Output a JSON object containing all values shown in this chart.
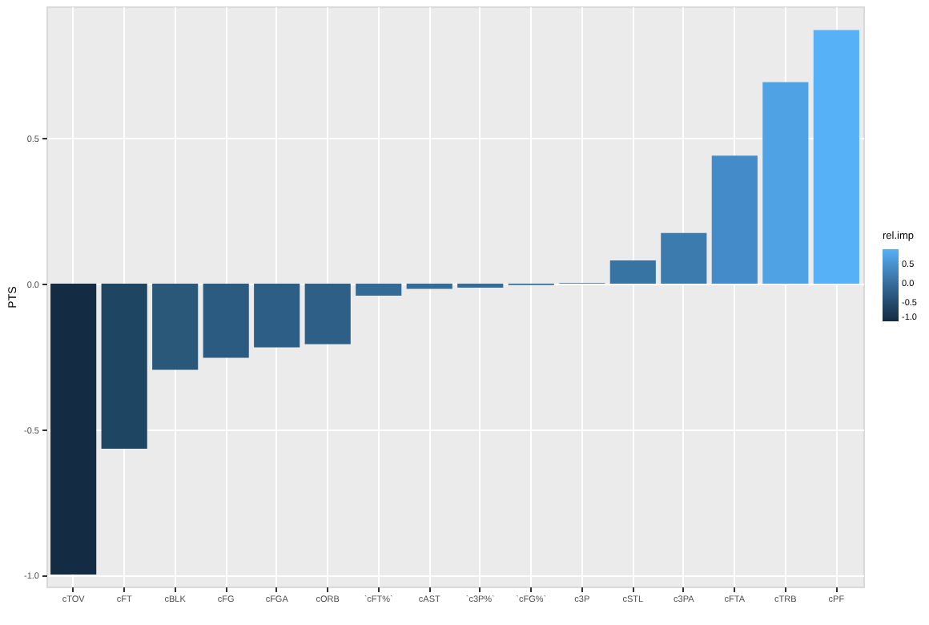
{
  "chart_data": {
    "type": "bar",
    "ylabel": "PTS",
    "clabel": "rel.imp",
    "categories": [
      "cTOV",
      "cFT",
      "cBLK",
      "cFG",
      "cFGA",
      "cORB",
      "`cFT%`",
      "cAST",
      "`c3P%`",
      "`cFG%`",
      "c3P",
      "cSTL",
      "c3PA",
      "cFTA",
      "cTRB",
      "cPF"
    ],
    "values": [
      -1.0,
      -0.567,
      -0.296,
      -0.255,
      -0.219,
      -0.208,
      -0.041,
      -0.018,
      -0.014,
      -0.005,
      0.002,
      0.08,
      0.174,
      0.44,
      0.693,
      0.872
    ],
    "colors": [
      "#132b43",
      "#1e4562",
      "#2a5878",
      "#2c5b82",
      "#2d5e85",
      "#2e5f86",
      "#336a96",
      "#346c98",
      "#346c99",
      "#356d9a",
      "#356e9b",
      "#3874a3",
      "#3c7bad",
      "#448bc9",
      "#4fa3e4",
      "#56b1f7"
    ],
    "ylim": [
      -1.041,
      0.953
    ],
    "yticks": [
      {
        "value": -1,
        "label": "-1.0"
      },
      {
        "value": -0.5,
        "label": "-0.5"
      },
      {
        "value": 0,
        "label": "0.0"
      },
      {
        "value": 0.5,
        "label": "0.5"
      }
    ],
    "clim": [
      -1.0,
      0.872
    ],
    "cticks": [
      {
        "value": -1,
        "label": "-1.0"
      },
      {
        "value": -0.5,
        "label": "-0.5"
      },
      {
        "value": 0,
        "label": "0.0"
      },
      {
        "value": 0.5,
        "label": "0.5"
      }
    ],
    "grid": true
  }
}
